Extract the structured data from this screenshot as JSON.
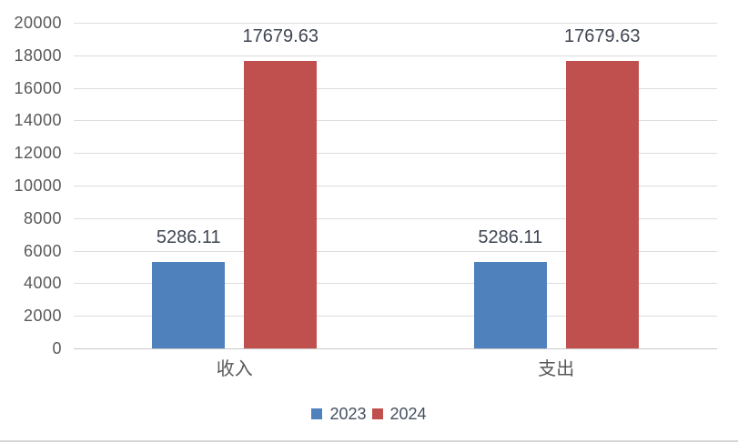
{
  "chart_data": {
    "type": "bar",
    "title": "",
    "categories": [
      "收入",
      "支出"
    ],
    "series": [
      {
        "name": "2023",
        "color": "#4F81BD",
        "values": [
          5286.11,
          5286.11
        ],
        "labels": [
          "5286.11",
          "5286.11"
        ]
      },
      {
        "name": "2024",
        "color": "#C0504D",
        "values": [
          17679.63,
          17679.63
        ],
        "labels": [
          "17679.63",
          "17679.63"
        ]
      }
    ],
    "ylim": [
      0,
      20000
    ],
    "ytick_interval": 2000,
    "ytick_labels": [
      "0",
      "2000",
      "4000",
      "6000",
      "8000",
      "10000",
      "12000",
      "14000",
      "16000",
      "18000",
      "20000"
    ],
    "grid": true,
    "data_labels_position": "outside-end",
    "legend_position": "bottom"
  },
  "legend": {
    "items": [
      {
        "label": "2023",
        "color": "#4F81BD"
      },
      {
        "label": "2024",
        "color": "#C0504D"
      }
    ]
  },
  "styles": {
    "background": "#FFFFFF",
    "grid_color": "#DCDCDC",
    "axis_line_color": "#C6C6C6",
    "tick_label_color": "#595959",
    "category_label_color": "#595959",
    "data_label_color": "#3F4552",
    "legend_label_color": "#44505F"
  }
}
